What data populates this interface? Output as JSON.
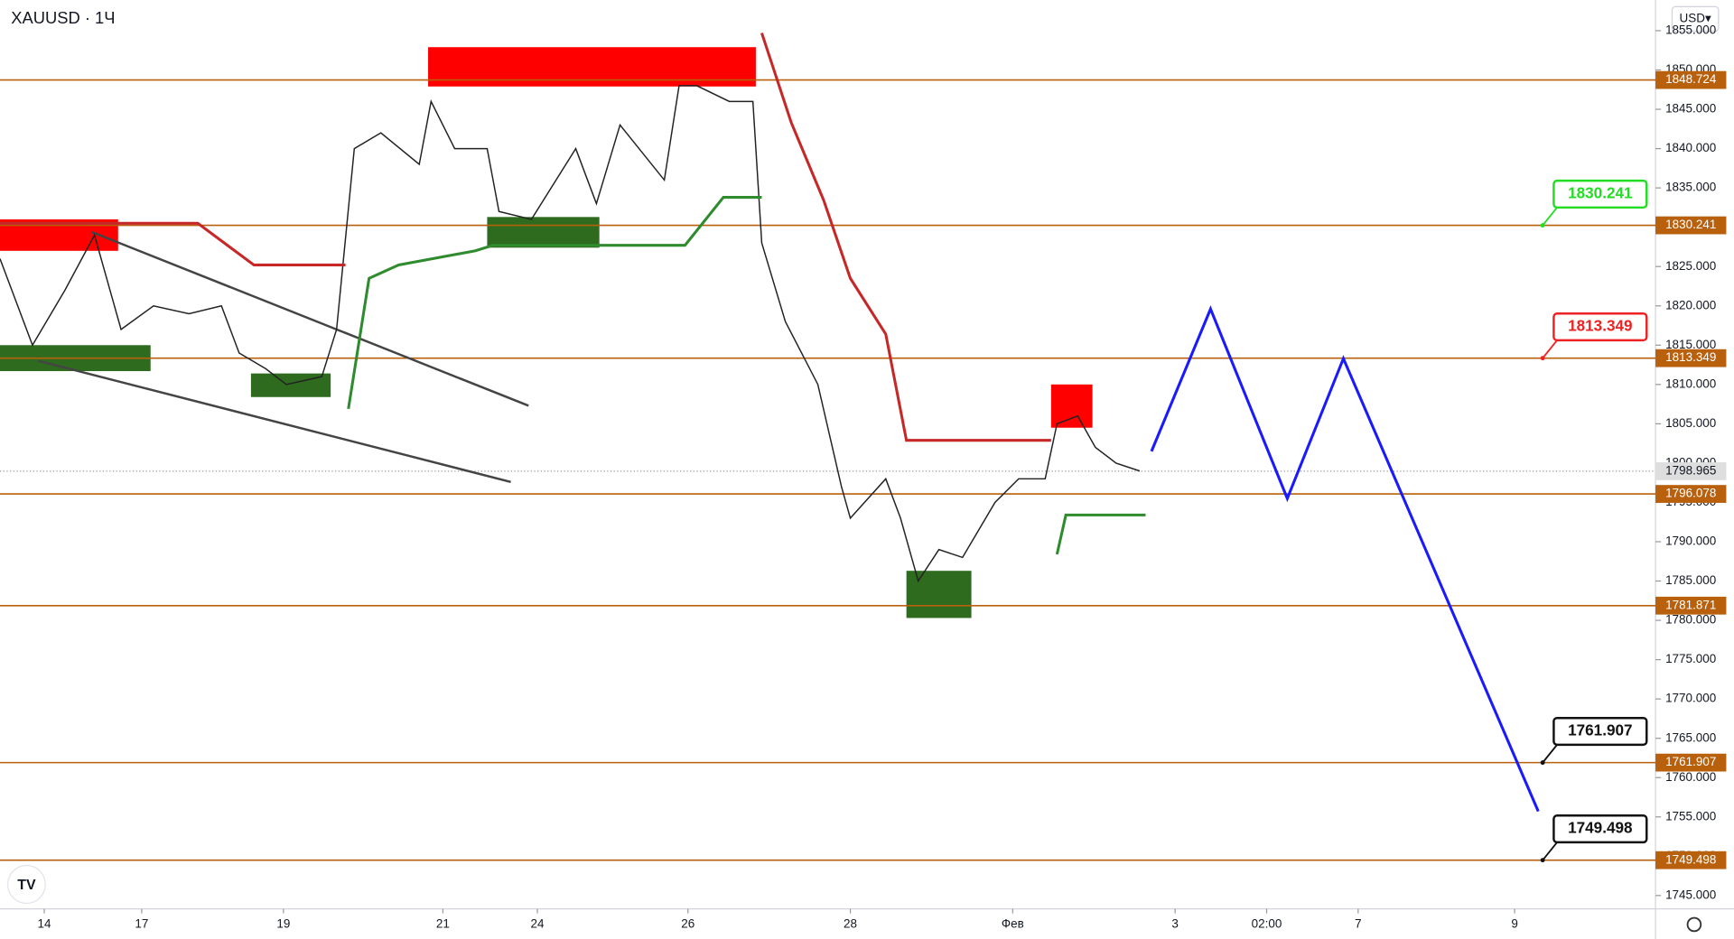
{
  "chart_data": {
    "type": "line",
    "symbol": "XAUUSD · 1Ч",
    "currency": "USD▾",
    "xlim": [
      0,
      560.7
    ],
    "ylim": [
      1743.3,
      1858.9
    ],
    "xticks": [
      {
        "value": 15,
        "label": "14"
      },
      {
        "value": 48,
        "label": "17"
      },
      {
        "value": 96,
        "label": "19"
      },
      {
        "value": 150,
        "label": "21"
      },
      {
        "value": 182,
        "label": "24"
      },
      {
        "value": 233,
        "label": "26"
      },
      {
        "value": 288,
        "label": "28"
      },
      {
        "value": 343,
        "label": "Фев"
      },
      {
        "value": 398,
        "label": "3"
      },
      {
        "value": 429,
        "label": "02:00"
      },
      {
        "value": 460,
        "label": "7"
      },
      {
        "value": 513,
        "label": "9"
      }
    ],
    "yticks": [
      {
        "value": 1745,
        "label": "1745.000"
      },
      {
        "value": 1750,
        "label": "1750.000"
      },
      {
        "value": 1755,
        "label": "1755.000"
      },
      {
        "value": 1760,
        "label": "1760.000"
      },
      {
        "value": 1765,
        "label": "1765.000"
      },
      {
        "value": 1770,
        "label": "1770.000"
      },
      {
        "value": 1775,
        "label": "1775.000"
      },
      {
        "value": 1780,
        "label": "1780.000"
      },
      {
        "value": 1785,
        "label": "1785.000"
      },
      {
        "value": 1790,
        "label": "1790.000"
      },
      {
        "value": 1795,
        "label": "1795.000"
      },
      {
        "value": 1800,
        "label": "1800.000"
      },
      {
        "value": 1805,
        "label": "1805.000"
      },
      {
        "value": 1810,
        "label": "1810.000"
      },
      {
        "value": 1815,
        "label": "1815.000"
      },
      {
        "value": 1820,
        "label": "1820.000"
      },
      {
        "value": 1825,
        "label": "1825.000"
      },
      {
        "value": 1830,
        "label": "1830.000"
      },
      {
        "value": 1835,
        "label": "1835.000"
      },
      {
        "value": 1840,
        "label": "1840.000"
      },
      {
        "value": 1845,
        "label": "1845.000"
      },
      {
        "value": 1850,
        "label": "1850.000"
      },
      {
        "value": 1855,
        "label": "1855.000"
      }
    ],
    "series": [
      {
        "color": "#222222",
        "x": [
          0,
          11,
          22,
          32,
          41,
          52,
          64,
          75,
          81,
          90,
          97,
          109,
          114,
          120,
          129,
          142,
          146,
          154,
          165,
          169,
          180,
          195,
          202,
          210,
          225,
          230,
          236,
          247,
          255,
          258,
          266,
          277,
          285,
          288,
          300,
          305,
          311,
          318,
          326,
          337,
          345,
          354,
          358,
          365,
          371,
          378,
          386
        ],
        "values": [
          1826,
          1815,
          1822,
          1829,
          1817,
          1820,
          1819,
          1820,
          1814,
          1812,
          1810,
          1811,
          1817,
          1840,
          1842,
          1838,
          1846,
          1840,
          1840,
          1832,
          1831,
          1840,
          1833,
          1843,
          1836,
          1848,
          1848,
          1846,
          1846,
          1828,
          1818,
          1810,
          1797,
          1793,
          1798,
          1793,
          1785,
          1789,
          1788,
          1795,
          1798,
          1798,
          1805,
          1806,
          1802,
          1800,
          1799
        ]
      },
      {
        "color": "#c62828",
        "x": [
          0,
          67,
          86,
          117
        ],
        "values": [
          1830.5,
          1830.5,
          1825.2,
          1825.2
        ]
      },
      {
        "color": "#c62828",
        "x": [
          258,
          268,
          279,
          288,
          300,
          307,
          356
        ],
        "values": [
          1854.7,
          1843.3,
          1833.4,
          1823.5,
          1816.4,
          1802.9,
          1802.9
        ]
      },
      {
        "color": "#2e8b2e",
        "x": [
          118,
          125,
          135,
          161,
          167,
          232,
          245,
          258
        ],
        "values": [
          1806.9,
          1823.5,
          1825.2,
          1827.0,
          1827.7,
          1827.7,
          1833.8,
          1833.8
        ]
      },
      {
        "color": "#2e8b2e",
        "x": [
          358,
          361,
          388
        ],
        "values": [
          1788.4,
          1793.4,
          1793.4
        ]
      },
      {
        "color": "#1a1aff",
        "x": [
          390,
          410,
          436,
          455,
          521
        ],
        "values": [
          1801.5,
          1819.6,
          1795.5,
          1813.3,
          1755.7
        ]
      }
    ],
    "zones": [
      {
        "color": "#ff0000",
        "x": [
          0,
          40
        ],
        "values": [
          1831.0,
          1827.0
        ]
      },
      {
        "color": "#ff0000",
        "x": [
          145,
          256
        ],
        "values": [
          1852.9,
          1847.9
        ]
      },
      {
        "color": "#ff0000",
        "x": [
          356,
          370
        ],
        "values": [
          1810.0,
          1804.5
        ]
      },
      {
        "color": "#2e6b1e",
        "x": [
          0,
          51
        ],
        "values": [
          1815.0,
          1811.7
        ]
      },
      {
        "color": "#2e6b1e",
        "x": [
          85,
          112
        ],
        "values": [
          1811.4,
          1808.4
        ]
      },
      {
        "color": "#2e6b1e",
        "x": [
          165,
          203
        ],
        "values": [
          1831.3,
          1827.4
        ]
      },
      {
        "color": "#2e6b1e",
        "x": [
          307,
          329
        ],
        "values": [
          1786.3,
          1780.3
        ]
      }
    ],
    "trendlines": [
      {
        "color": "#444444",
        "x": [
          31,
          179
        ],
        "values": [
          1829.4,
          1807.3
        ]
      },
      {
        "color": "#444444",
        "x": [
          13,
          173
        ],
        "values": [
          1813.0,
          1797.6
        ]
      }
    ],
    "levels": [
      1848.724,
      1830.241,
      1813.349,
      1796.078,
      1781.871,
      1761.907,
      1749.498
    ],
    "level_color": "#b8600b",
    "current_price": 1798.965,
    "callouts": [
      {
        "value": 1830.241,
        "color": "#22dd22"
      },
      {
        "value": 1813.349,
        "color": "#ee2222"
      },
      {
        "value": 1761.907,
        "color": "#111111"
      },
      {
        "value": 1749.498,
        "color": "#111111"
      }
    ]
  }
}
